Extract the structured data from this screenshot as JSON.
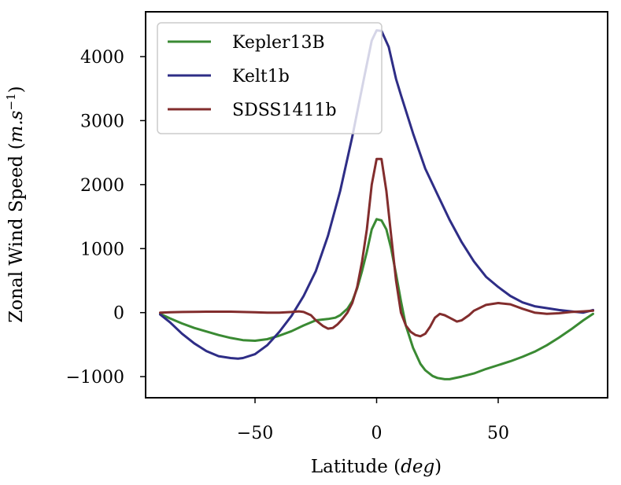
{
  "chart_data": {
    "type": "line",
    "title": "",
    "xlabel": "Latitude (deg)",
    "xlabel_parts": {
      "main": "Latitude (",
      "unit": "deg",
      "close": ")"
    },
    "ylabel": "Zonal Wind Speed (m.s^-1)",
    "ylabel_parts": {
      "main": "Zonal Wind Speed (",
      "unit": "m.s",
      "sup": "−1",
      "close": ")"
    },
    "xlim": [
      -95,
      95
    ],
    "ylim": [
      -1330,
      4700
    ],
    "xticks": [
      -50,
      0,
      50
    ],
    "xtick_labels": [
      "−50",
      "0",
      "50"
    ],
    "yticks": [
      -1000,
      0,
      1000,
      2000,
      3000,
      4000
    ],
    "ytick_labels": [
      "−1000",
      "0",
      "1000",
      "2000",
      "3000",
      "4000"
    ],
    "grid": false,
    "legend_position": "top-left",
    "series": [
      {
        "name": "Kepler13B",
        "color": "#3a8a33",
        "x": [
          -89,
          -85,
          -80,
          -75,
          -70,
          -65,
          -60,
          -55,
          -50,
          -45,
          -40,
          -35,
          -30,
          -25,
          -20,
          -17,
          -15,
          -12,
          -10,
          -8,
          -6,
          -4,
          -2,
          0,
          2,
          4,
          6,
          8,
          10,
          12,
          15,
          18,
          20,
          23,
          25,
          28,
          30,
          35,
          40,
          45,
          50,
          55,
          60,
          65,
          70,
          75,
          80,
          85,
          89
        ],
        "y": [
          -20,
          -90,
          -170,
          -240,
          -295,
          -350,
          -395,
          -430,
          -440,
          -415,
          -360,
          -290,
          -200,
          -120,
          -100,
          -80,
          -40,
          60,
          180,
          380,
          650,
          950,
          1300,
          1460,
          1440,
          1300,
          1000,
          600,
          180,
          -200,
          -550,
          -800,
          -900,
          -990,
          -1020,
          -1040,
          -1040,
          -1000,
          -950,
          -880,
          -820,
          -760,
          -690,
          -610,
          -510,
          -390,
          -260,
          -120,
          -20
        ]
      },
      {
        "name": "Kelt1b",
        "color": "#2e2d86",
        "x": [
          -89,
          -85,
          -80,
          -75,
          -70,
          -65,
          -60,
          -57,
          -55,
          -50,
          -45,
          -40,
          -35,
          -30,
          -25,
          -20,
          -15,
          -10,
          -5,
          -2,
          0,
          2,
          5,
          8,
          10,
          15,
          20,
          25,
          30,
          35,
          40,
          45,
          50,
          55,
          60,
          65,
          70,
          75,
          80,
          85,
          89
        ],
        "y": [
          -30,
          -150,
          -330,
          -480,
          -600,
          -680,
          -710,
          -720,
          -710,
          -650,
          -510,
          -300,
          -50,
          260,
          650,
          1200,
          1900,
          2750,
          3700,
          4250,
          4410,
          4400,
          4150,
          3650,
          3400,
          2800,
          2250,
          1850,
          1450,
          1100,
          800,
          560,
          400,
          260,
          160,
          100,
          70,
          40,
          20,
          0,
          40
        ]
      },
      {
        "name": "SDSS1411b",
        "color": "#822d2d",
        "x": [
          -89,
          -85,
          -80,
          -70,
          -60,
          -50,
          -45,
          -40,
          -35,
          -32,
          -30,
          -27,
          -25,
          -22,
          -20,
          -18,
          -16,
          -14,
          -12,
          -10,
          -8,
          -6,
          -4,
          -2,
          0,
          2,
          4,
          6,
          8,
          10,
          12,
          14,
          16,
          18,
          20,
          22,
          24,
          26,
          28,
          30,
          33,
          35,
          38,
          40,
          45,
          50,
          55,
          60,
          65,
          70,
          75,
          80,
          85,
          89
        ],
        "y": [
          0,
          5,
          10,
          15,
          15,
          5,
          0,
          0,
          10,
          20,
          10,
          -40,
          -120,
          -210,
          -250,
          -240,
          -180,
          -100,
          0,
          150,
          400,
          800,
          1300,
          2000,
          2400,
          2400,
          1900,
          1200,
          500,
          0,
          -200,
          -300,
          -350,
          -370,
          -330,
          -220,
          -80,
          -20,
          -40,
          -80,
          -140,
          -120,
          -40,
          30,
          120,
          150,
          130,
          60,
          0,
          -20,
          -10,
          10,
          20,
          30
        ]
      }
    ]
  }
}
